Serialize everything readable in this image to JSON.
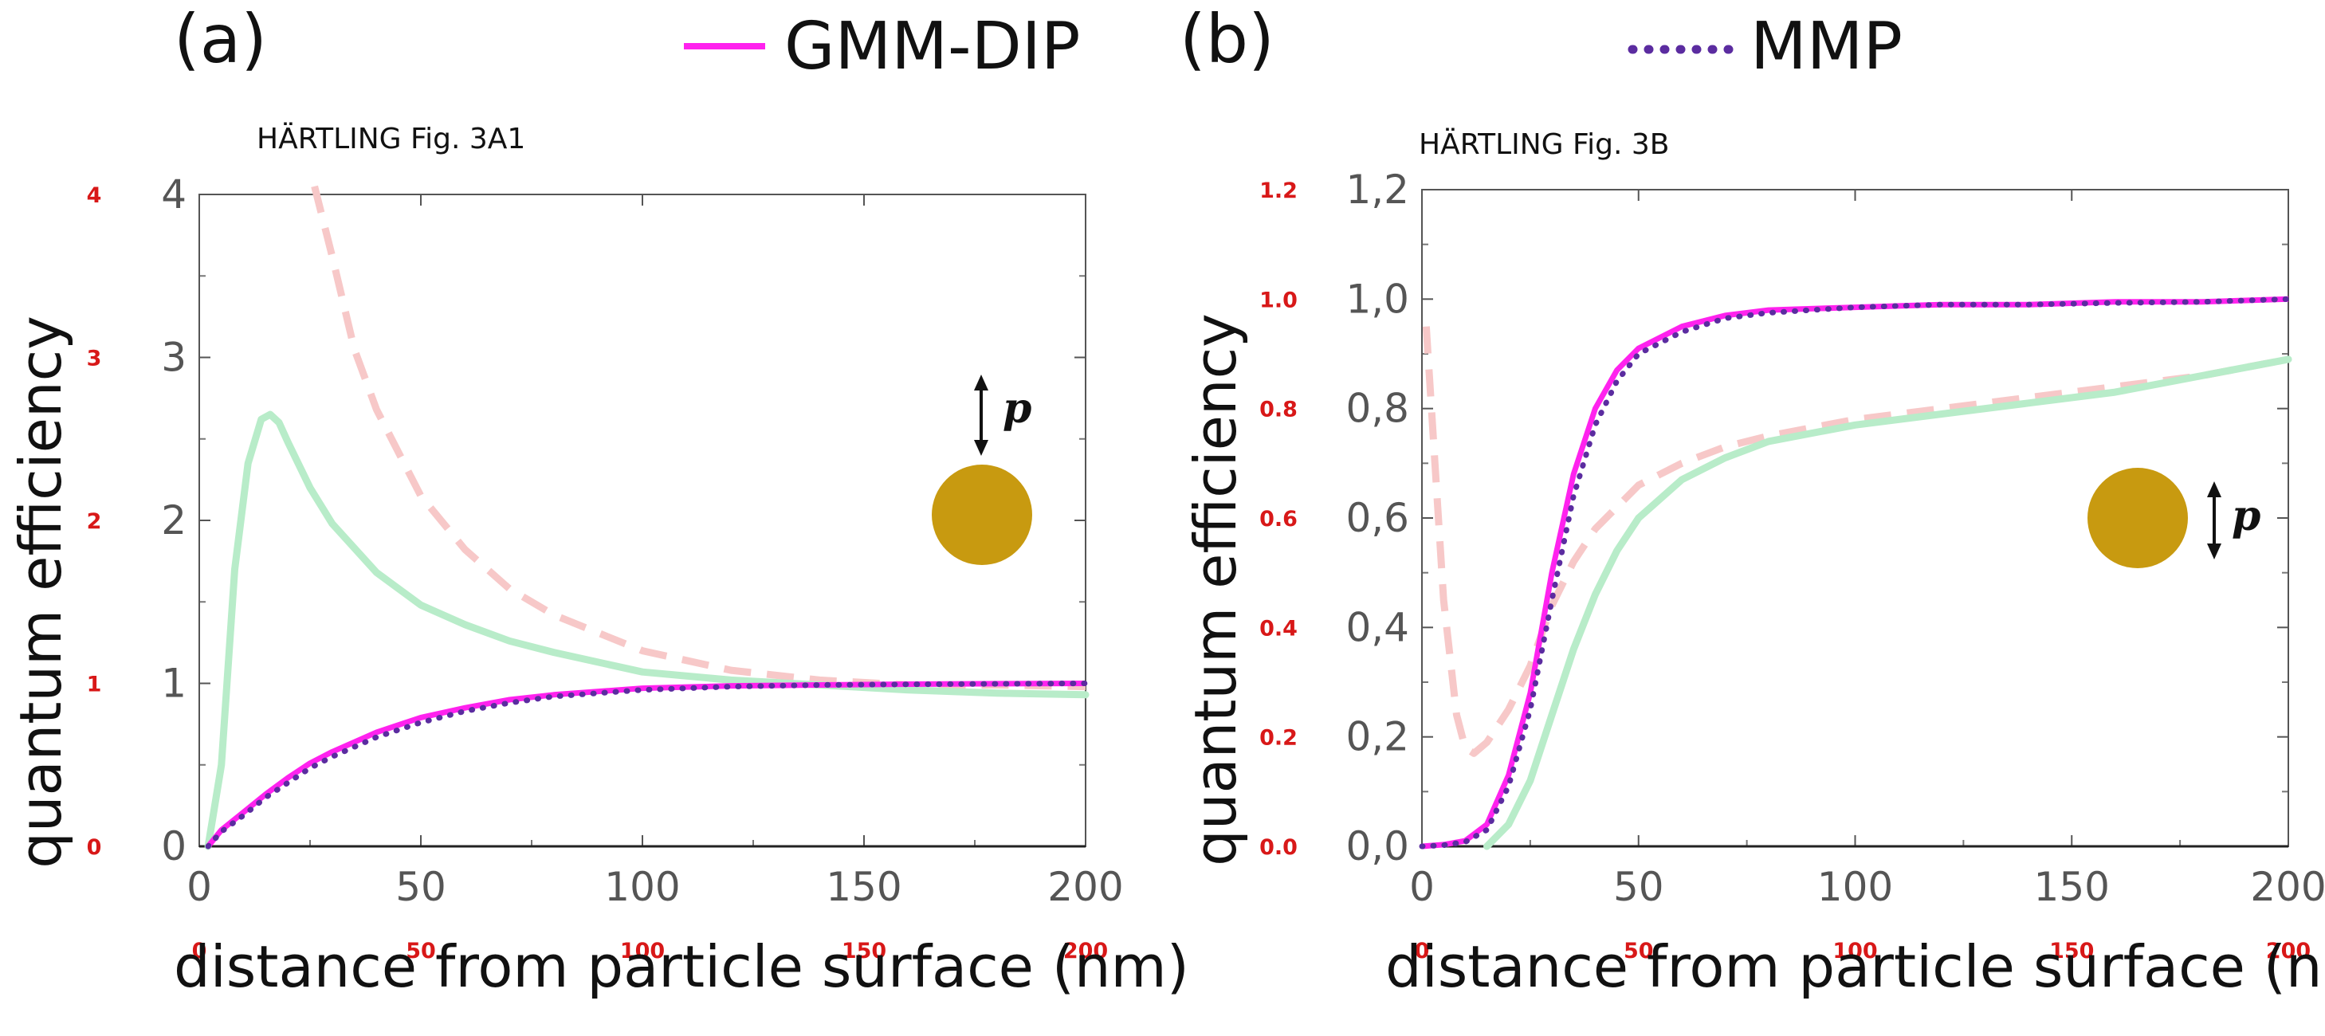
{
  "legend": {
    "gmm_dip": "GMM-DIP",
    "mmp": "MMP"
  },
  "colors": {
    "gmm_dip": "#ff22ee",
    "mmp": "#5b2ca0",
    "green": "#b8ecc9",
    "pink": "#f7c8c8",
    "particle": "#c89a10",
    "red_ticks": "#d81818"
  },
  "icons": {
    "particle": "gold-sphere-icon",
    "dipole": "double-arrow-icon"
  },
  "chart_data": [
    {
      "type": "line",
      "panel": "(a)",
      "caption": "HÄRTLING Fig. 3A1",
      "xlabel": "distance from particle surface (nm)",
      "ylabel": "quantum efficiency",
      "xlim": [
        0,
        200
      ],
      "ylim": [
        0,
        4
      ],
      "x_ticks": [
        "0",
        "50",
        "100",
        "150",
        "200"
      ],
      "y_ticks": [
        "0",
        "1",
        "2",
        "3",
        "4"
      ],
      "secondary_y_ticks": [
        "0",
        "1",
        "2",
        "3",
        "4"
      ],
      "secondary_x_ticks": [
        "0",
        "50",
        "100",
        "150",
        "200"
      ],
      "dipole_label": "p",
      "dipole_orientation": "vertical",
      "series": [
        {
          "id": "gmm_dip",
          "name": "GMM-DIP",
          "style": "solid",
          "x": [
            2,
            5,
            10,
            15,
            20,
            25,
            30,
            40,
            50,
            60,
            70,
            80,
            100,
            120,
            140,
            160,
            180,
            200
          ],
          "y": [
            0.0,
            0.1,
            0.21,
            0.32,
            0.42,
            0.51,
            0.58,
            0.7,
            0.79,
            0.85,
            0.9,
            0.93,
            0.97,
            0.985,
            0.99,
            0.995,
            0.998,
            1.0
          ]
        },
        {
          "id": "mmp",
          "name": "MMP",
          "style": "dotted",
          "x": [
            2,
            5,
            10,
            15,
            20,
            25,
            30,
            40,
            50,
            60,
            70,
            80,
            100,
            120,
            140,
            160,
            180,
            200
          ],
          "y": [
            0.0,
            0.09,
            0.19,
            0.3,
            0.39,
            0.48,
            0.55,
            0.67,
            0.76,
            0.83,
            0.88,
            0.92,
            0.96,
            0.98,
            0.99,
            0.994,
            0.997,
            1.0
          ]
        },
        {
          "id": "green",
          "style": "faint-solid",
          "x": [
            2,
            5,
            8,
            11,
            14,
            16,
            18,
            20,
            25,
            30,
            40,
            50,
            60,
            70,
            80,
            100,
            120,
            140,
            160,
            180,
            200
          ],
          "y": [
            0.0,
            0.5,
            1.7,
            2.35,
            2.62,
            2.65,
            2.6,
            2.48,
            2.2,
            1.98,
            1.68,
            1.48,
            1.36,
            1.26,
            1.19,
            1.07,
            1.02,
            0.99,
            0.96,
            0.94,
            0.93
          ]
        },
        {
          "id": "pink",
          "style": "faint-dashed",
          "x": [
            26,
            30,
            35,
            40,
            50,
            60,
            70,
            80,
            100,
            120,
            140,
            160,
            180,
            200
          ],
          "y": [
            4.05,
            3.62,
            3.05,
            2.68,
            2.15,
            1.82,
            1.58,
            1.42,
            1.2,
            1.08,
            1.02,
            0.99,
            0.99,
            0.98
          ]
        }
      ]
    },
    {
      "type": "line",
      "panel": "(b)",
      "caption": "HÄRTLING Fig. 3B",
      "xlabel": "distance from particle surface (nm)",
      "ylabel": "quantum efficiency",
      "xlim": [
        0,
        200
      ],
      "ylim": [
        0,
        1.2
      ],
      "x_ticks": [
        "0",
        "50",
        "100",
        "150",
        "200"
      ],
      "y_ticks": [
        "0,0",
        "0,2",
        "0,4",
        "0,6",
        "0,8",
        "1,0",
        "1,2"
      ],
      "secondary_y_ticks": [
        "0.0",
        "0.2",
        "0.4",
        "0.6",
        "0.8",
        "1.0",
        "1.2"
      ],
      "secondary_x_ticks": [
        "0",
        "50",
        "100",
        "150",
        "200"
      ],
      "dipole_label": "p",
      "dipole_orientation": "vertical",
      "series": [
        {
          "id": "gmm_dip",
          "name": "GMM-DIP",
          "style": "solid",
          "x": [
            0,
            5,
            10,
            15,
            20,
            25,
            30,
            35,
            40,
            45,
            50,
            60,
            70,
            80,
            100,
            120,
            140,
            160,
            180,
            200
          ],
          "y": [
            0.0,
            0.003,
            0.01,
            0.04,
            0.13,
            0.28,
            0.5,
            0.68,
            0.8,
            0.87,
            0.91,
            0.95,
            0.97,
            0.98,
            0.985,
            0.99,
            0.99,
            0.995,
            0.995,
            1.0
          ]
        },
        {
          "id": "mmp",
          "name": "MMP",
          "style": "dotted",
          "x": [
            0,
            5,
            10,
            15,
            20,
            25,
            30,
            35,
            40,
            45,
            50,
            60,
            70,
            80,
            100,
            120,
            140,
            160,
            180,
            200
          ],
          "y": [
            0.0,
            0.002,
            0.008,
            0.03,
            0.11,
            0.25,
            0.45,
            0.64,
            0.77,
            0.85,
            0.9,
            0.94,
            0.965,
            0.975,
            0.985,
            0.99,
            0.99,
            0.993,
            0.995,
            1.0
          ]
        },
        {
          "id": "green",
          "style": "faint-solid",
          "x": [
            15,
            20,
            25,
            30,
            35,
            40,
            45,
            50,
            60,
            70,
            80,
            100,
            120,
            140,
            160,
            180,
            200
          ],
          "y": [
            0.0,
            0.04,
            0.12,
            0.24,
            0.36,
            0.46,
            0.54,
            0.6,
            0.67,
            0.71,
            0.74,
            0.77,
            0.79,
            0.81,
            0.83,
            0.86,
            0.89
          ]
        },
        {
          "id": "pink",
          "style": "faint-dashed",
          "x": [
            1,
            3,
            5,
            8,
            10,
            12,
            15,
            20,
            25,
            30,
            35,
            40,
            45,
            50,
            60,
            70,
            80,
            100,
            120,
            140,
            160,
            180,
            200
          ],
          "y": [
            0.95,
            0.7,
            0.45,
            0.24,
            0.18,
            0.17,
            0.19,
            0.25,
            0.33,
            0.44,
            0.52,
            0.58,
            0.62,
            0.66,
            0.7,
            0.73,
            0.75,
            0.78,
            0.8,
            0.82,
            0.84,
            0.86,
            0.89
          ]
        }
      ]
    }
  ]
}
